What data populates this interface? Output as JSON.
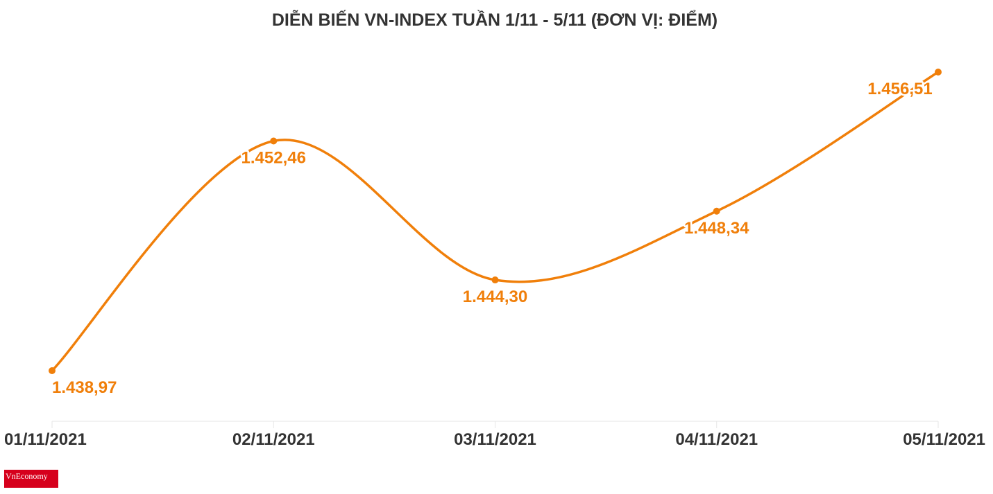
{
  "logo": {
    "text": "VnEconomy"
  },
  "chart_data": {
    "type": "line",
    "title": "DIỄN BIẾN VN-INDEX TUẦN 1/11 - 5/11 (ĐƠN VỊ: ĐIỂM)",
    "categories": [
      "01/11/2021",
      "02/11/2021",
      "03/11/2021",
      "04/11/2021",
      "05/11/2021"
    ],
    "series": [
      {
        "values": [
          1438.97,
          1452.46,
          1444.3,
          1448.34,
          1456.51
        ],
        "labels": [
          "1.438,97",
          "1.452,46",
          "1.444,30",
          "1.448,34",
          "1.456,51"
        ],
        "color": "#F07F0A"
      }
    ],
    "xlabel": "",
    "ylabel": "",
    "grid": false,
    "legend": "none"
  }
}
